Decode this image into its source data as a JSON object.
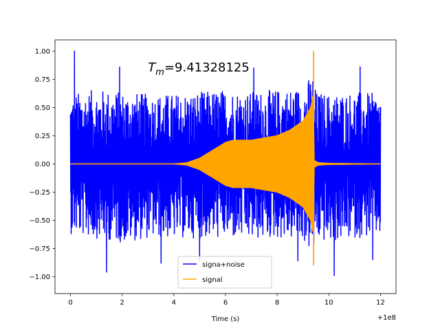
{
  "chart_data": {
    "type": "line",
    "title": "",
    "xlabel": "Time (s)",
    "ylabel": "",
    "x_offset_label": "+1e8",
    "xlim": [
      -0.6,
      12.6
    ],
    "ylim": [
      -1.15,
      1.1
    ],
    "x_ticks": [
      0,
      2,
      4,
      6,
      8,
      10,
      12
    ],
    "x_tick_labels": [
      "0",
      "2",
      "4",
      "6",
      "8",
      "10",
      "12"
    ],
    "y_ticks": [
      1.0,
      0.75,
      0.5,
      0.25,
      0.0,
      -0.25,
      -0.5,
      -0.75,
      -1.0
    ],
    "y_tick_labels": [
      "1.00",
      "0.75",
      "0.50",
      "0.25",
      "0.00",
      "−0.25",
      "−0.50",
      "−0.75",
      "−1.00"
    ],
    "grid": false,
    "legend_position": "lower-center",
    "annotation": {
      "prefix": "T",
      "subscript": "m",
      "value": "=9.41328125",
      "x": 3.0,
      "y": 0.82
    },
    "series": [
      {
        "name": "signa+noise",
        "color": "#0000ff",
        "x_range": [
          0,
          12
        ],
        "envelope_upper": [
          [
            0,
            0.62
          ],
          [
            1,
            0.66
          ],
          [
            2,
            0.64
          ],
          [
            3,
            0.62
          ],
          [
            4,
            0.62
          ],
          [
            5,
            0.64
          ],
          [
            6,
            0.66
          ],
          [
            7,
            0.64
          ],
          [
            8,
            0.66
          ],
          [
            9,
            0.68
          ],
          [
            9.4,
            0.82
          ],
          [
            9.5,
            0.64
          ],
          [
            10,
            0.62
          ],
          [
            11,
            0.64
          ],
          [
            12,
            0.62
          ]
        ],
        "envelope_lower": [
          [
            0,
            -0.62
          ],
          [
            1,
            -0.66
          ],
          [
            2,
            -0.7
          ],
          [
            3,
            -0.66
          ],
          [
            4,
            -0.66
          ],
          [
            5,
            -0.66
          ],
          [
            6,
            -0.66
          ],
          [
            7,
            -0.68
          ],
          [
            8,
            -0.66
          ],
          [
            9,
            -0.68
          ],
          [
            9.4,
            -0.82
          ],
          [
            9.5,
            -0.68
          ],
          [
            10,
            -0.7
          ],
          [
            11,
            -0.66
          ],
          [
            12,
            -0.64
          ]
        ],
        "peaks": [
          [
            0.15,
            1.0
          ],
          [
            1.4,
            -0.96
          ],
          [
            1.9,
            0.86
          ],
          [
            7.1,
            0.85
          ],
          [
            10.2,
            -0.99
          ],
          [
            11.2,
            0.86
          ],
          [
            11.7,
            -0.85
          ],
          [
            3.5,
            -0.88
          ],
          [
            5.0,
            -0.86
          ],
          [
            8.8,
            -0.86
          ]
        ]
      },
      {
        "name": "signal",
        "color": "#ffa500",
        "x_range": [
          0,
          12
        ],
        "envelope": [
          [
            0,
            0.0
          ],
          [
            4,
            0.0
          ],
          [
            4.5,
            0.01
          ],
          [
            5,
            0.05
          ],
          [
            5.5,
            0.12
          ],
          [
            6,
            0.19
          ],
          [
            6.3,
            0.21
          ],
          [
            7,
            0.21
          ],
          [
            8,
            0.25
          ],
          [
            8.5,
            0.3
          ],
          [
            9,
            0.38
          ],
          [
            9.3,
            0.5
          ],
          [
            9.4,
            0.62
          ],
          [
            9.42,
            0.03
          ],
          [
            9.6,
            0.01
          ],
          [
            10,
            0.005
          ],
          [
            12,
            0.0
          ]
        ],
        "spike": {
          "x": 9.41,
          "max": 1.0,
          "min": -0.9
        }
      }
    ]
  }
}
